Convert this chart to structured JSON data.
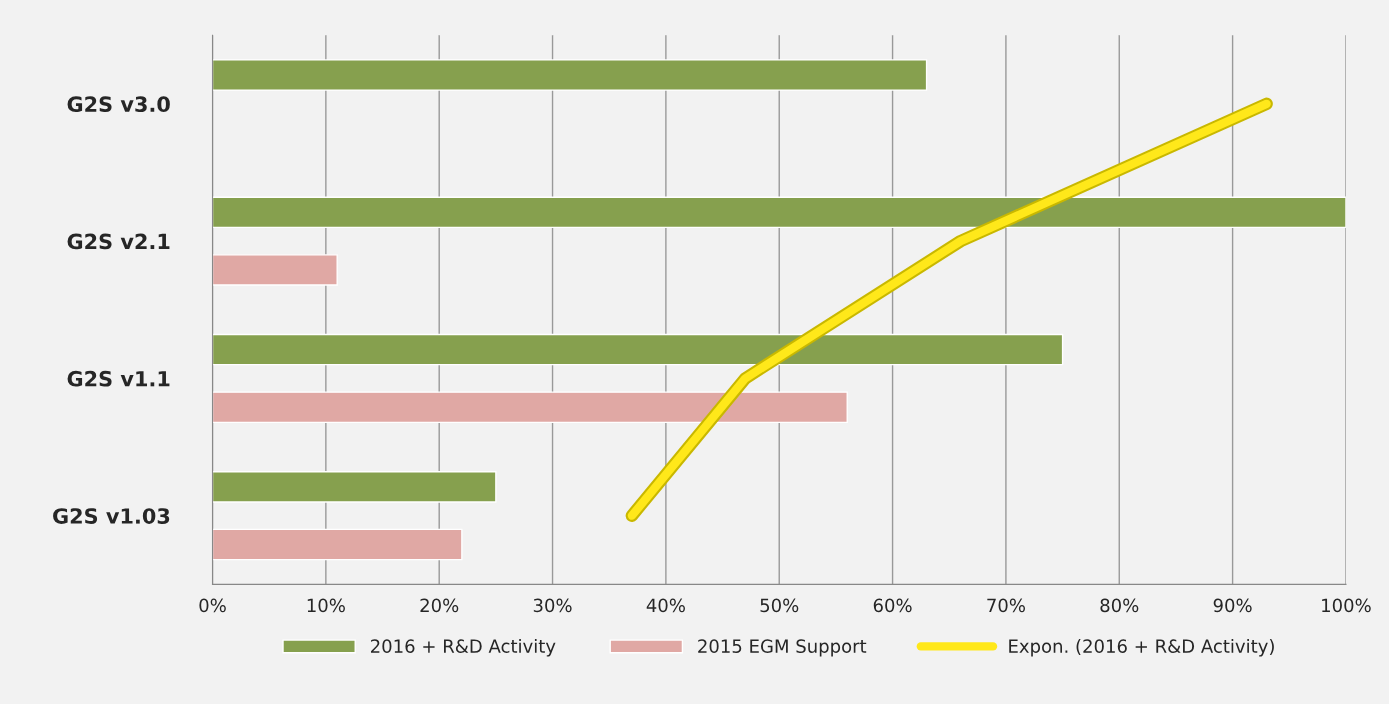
{
  "chart_data": {
    "type": "bar",
    "orientation": "horizontal",
    "categories": [
      "G2S v3.0",
      "G2S v2.1",
      "G2S v1.1",
      "G2S v1.03"
    ],
    "series": [
      {
        "name": "2016 + R&D Activity",
        "color": "#86a04e",
        "values": [
          63,
          100,
          75,
          25
        ]
      },
      {
        "name": "2015 EGM Support",
        "color": "#e0a8a4",
        "values": [
          null,
          11,
          56,
          22
        ]
      },
      {
        "name": "Expon. (2016 + R&D Activity)",
        "type": "line",
        "color": "#ffe81a",
        "values": [
          93,
          66,
          47,
          37
        ]
      }
    ],
    "xlim": [
      0,
      100
    ],
    "xticks": [
      {
        "value": 0,
        "label": "0%"
      },
      {
        "value": 10,
        "label": "10%"
      },
      {
        "value": 20,
        "label": "20%"
      },
      {
        "value": 30,
        "label": "30%"
      },
      {
        "value": 40,
        "label": "40%"
      },
      {
        "value": 50,
        "label": "50%"
      },
      {
        "value": 60,
        "label": "60%"
      },
      {
        "value": 70,
        "label": "70%"
      },
      {
        "value": 80,
        "label": "80%"
      },
      {
        "value": 90,
        "label": "90%"
      },
      {
        "value": 100,
        "label": "100%"
      }
    ],
    "grid": "x",
    "legend": "bottom"
  }
}
